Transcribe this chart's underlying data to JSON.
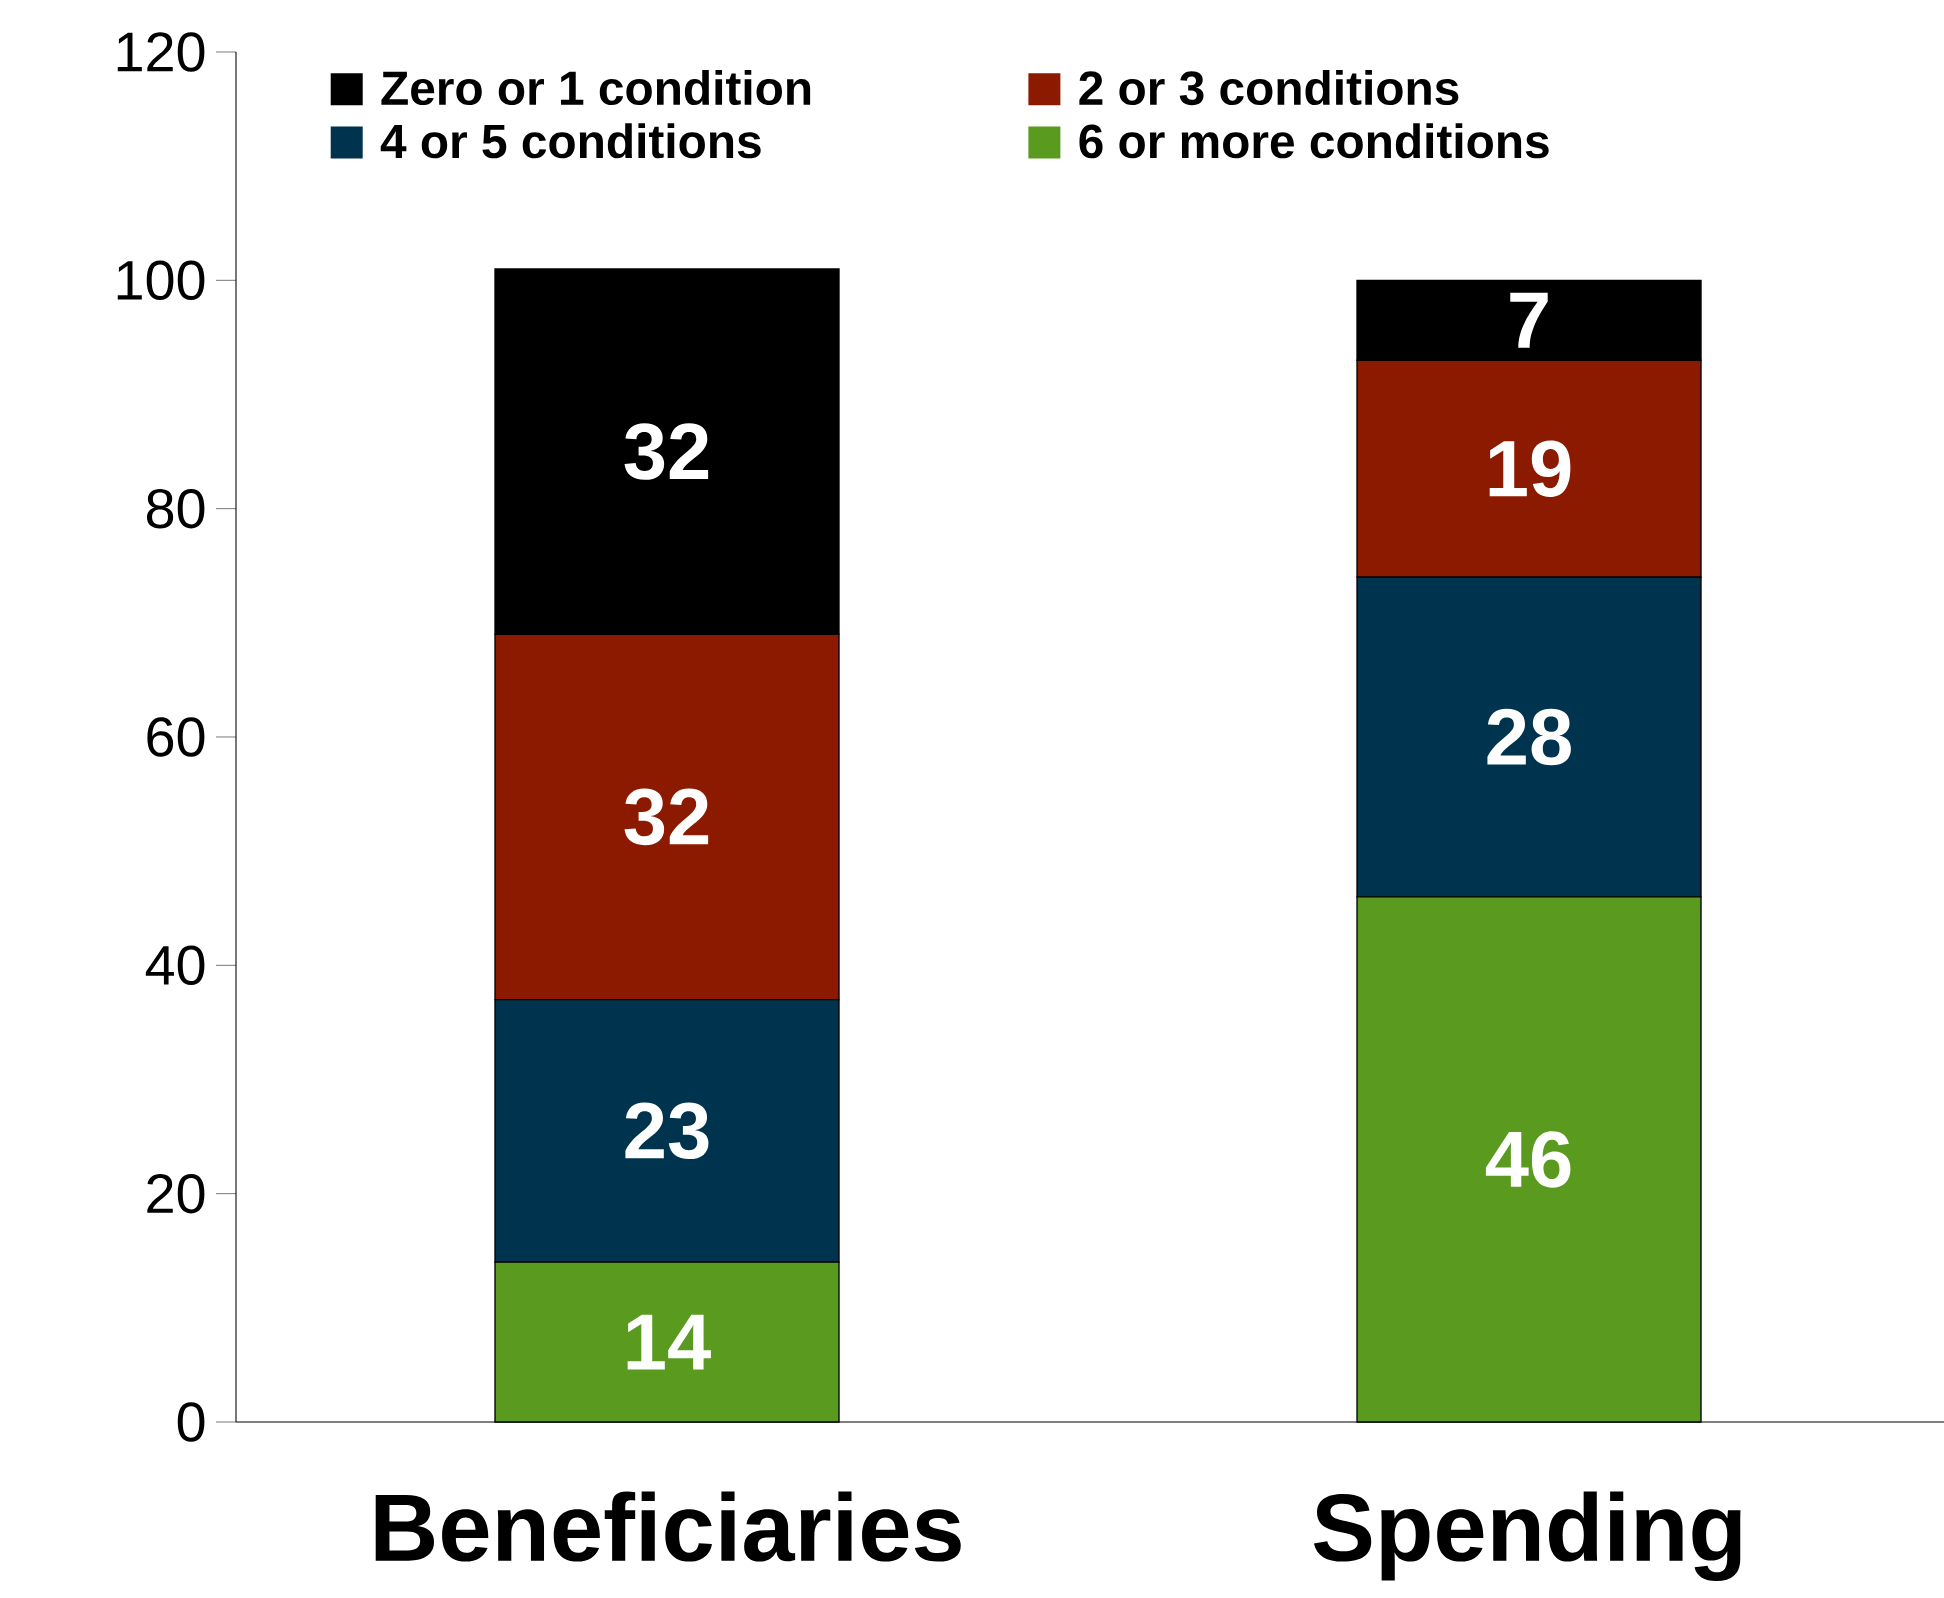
{
  "chart_data": {
    "type": "bar",
    "stacked": true,
    "categories": [
      "Beneficiaries",
      "Spending"
    ],
    "series": [
      {
        "name": "6 or more conditions",
        "color": "#5a9a1e",
        "values": [
          14,
          46
        ]
      },
      {
        "name": "4 or 5 conditions",
        "color": "#00334e",
        "values": [
          23,
          28
        ]
      },
      {
        "name": "2 or 3 conditions",
        "color": "#8c1a00",
        "values": [
          32,
          19
        ]
      },
      {
        "name": "Zero or 1 condition",
        "color": "#000000",
        "values": [
          32,
          7
        ]
      }
    ],
    "ylim": [
      0,
      120
    ],
    "yticks": [
      0,
      20,
      40,
      60,
      80,
      100,
      120
    ],
    "data_labels": true,
    "legend": "top",
    "grid": false
  }
}
